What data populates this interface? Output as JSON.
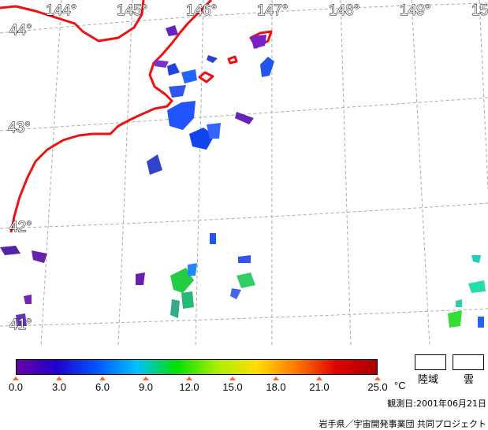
{
  "map": {
    "longitudes": [
      "144°",
      "145°",
      "146°",
      "147°",
      "148°",
      "149°",
      "15"
    ],
    "latitudes": [
      "44°",
      "43°",
      "42°",
      "41°"
    ],
    "coastline_color": "#ee1111",
    "grid_color": "#aaaaaa"
  },
  "legend": {
    "ticks": [
      "0.0",
      "3.0",
      "6.0",
      "9.0",
      "12.0",
      "15.0",
      "18.0",
      "21.0",
      "25.0"
    ],
    "unit": "°C",
    "gradient_colors": [
      "#6600aa",
      "#2200cc",
      "#0055ff",
      "#00c0ff",
      "#00e000",
      "#aaee00",
      "#ffdd00",
      "#ff7700",
      "#dd0000",
      "#aa0000"
    ],
    "land_label": "陸域",
    "cloud_label": "雲"
  },
  "obs_date": "観測日:2001年06月21日",
  "credit": "岩手県／宇宙開発事業団 共同プロジェクト"
}
